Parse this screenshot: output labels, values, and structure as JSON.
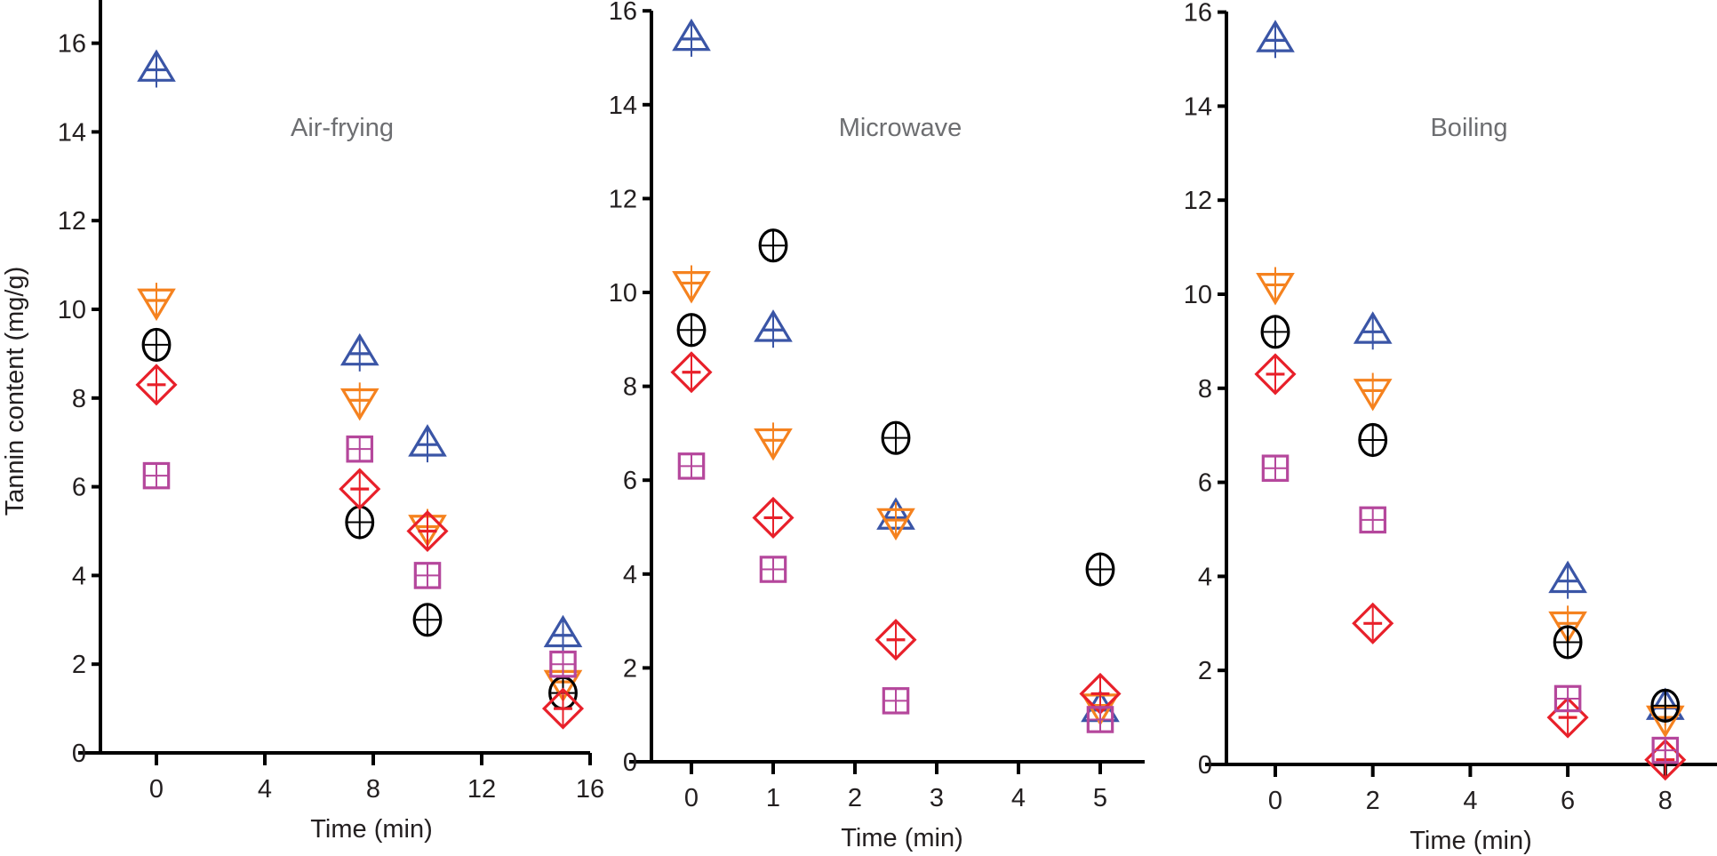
{
  "chart_data": [
    {
      "type": "scatter",
      "title": "Air-frying",
      "xlabel": "Time (min)",
      "ylabel": "Tannin content (mg/g)",
      "xlim": [
        -2,
        16
      ],
      "ylim": [
        0,
        17
      ],
      "xticks": [
        0,
        4,
        8,
        12,
        16
      ],
      "yticks": [
        0,
        2,
        4,
        6,
        8,
        10,
        12,
        14,
        16
      ],
      "grid": false,
      "x": [
        0,
        7.5,
        10,
        15
      ],
      "series": [
        {
          "name": "series-1",
          "marker": "triangle-up",
          "color": "#3a55a6",
          "values": [
            15.4,
            9.0,
            6.95,
            2.65
          ]
        },
        {
          "name": "series-2",
          "marker": "triangle-down",
          "color": "#f5821f",
          "values": [
            10.2,
            7.95,
            5.1,
            1.6
          ]
        },
        {
          "name": "series-3",
          "marker": "circle",
          "color": "#000000",
          "values": [
            9.2,
            5.2,
            3.0,
            1.35
          ]
        },
        {
          "name": "series-4",
          "marker": "diamond",
          "color": "#e8202a",
          "values": [
            8.3,
            5.95,
            5.0,
            1.0
          ]
        },
        {
          "name": "series-5",
          "marker": "square",
          "color": "#b5479c",
          "values": [
            6.25,
            6.85,
            4.0,
            2.0
          ]
        }
      ]
    },
    {
      "type": "scatter",
      "title": "Microwave",
      "xlabel": "Time (min)",
      "ylabel": "",
      "xlim": [
        -0.5,
        5.5
      ],
      "ylim": [
        0,
        16
      ],
      "xticks": [
        0,
        1,
        2,
        3,
        4,
        5
      ],
      "yticks": [
        0,
        2,
        4,
        6,
        8,
        10,
        12,
        14,
        16
      ],
      "grid": false,
      "x": [
        0,
        1,
        2.5,
        5
      ],
      "series": [
        {
          "name": "series-1",
          "marker": "triangle-up",
          "color": "#3a55a6",
          "values": [
            15.4,
            9.2,
            5.2,
            1.1
          ]
        },
        {
          "name": "series-2",
          "marker": "triangle-down",
          "color": "#f5821f",
          "values": [
            10.2,
            6.85,
            5.15,
            1.2
          ]
        },
        {
          "name": "series-3",
          "marker": "circle",
          "color": "#000000",
          "values": [
            9.2,
            11.0,
            6.9,
            4.1
          ]
        },
        {
          "name": "series-4",
          "marker": "diamond",
          "color": "#e8202a",
          "values": [
            8.3,
            5.2,
            2.6,
            1.45
          ]
        },
        {
          "name": "series-5",
          "marker": "square",
          "color": "#b5479c",
          "values": [
            6.3,
            4.1,
            1.3,
            0.9
          ]
        }
      ]
    },
    {
      "type": "scatter",
      "title": "Boiling",
      "xlabel": "Time (min)",
      "ylabel": "",
      "xlim": [
        -1,
        9
      ],
      "ylim": [
        0,
        16
      ],
      "xticks": [
        0,
        2,
        4,
        6,
        8
      ],
      "yticks": [
        0,
        2,
        4,
        6,
        8,
        10,
        12,
        14,
        16
      ],
      "grid": false,
      "x": [
        0,
        2,
        6,
        8
      ],
      "series": [
        {
          "name": "series-1",
          "marker": "triangle-up",
          "color": "#3a55a6",
          "values": [
            15.4,
            9.2,
            3.9,
            1.2
          ]
        },
        {
          "name": "series-2",
          "marker": "triangle-down",
          "color": "#f5821f",
          "values": [
            10.2,
            7.95,
            3.0,
            1.0
          ]
        },
        {
          "name": "series-3",
          "marker": "circle",
          "color": "#000000",
          "values": [
            9.2,
            6.9,
            2.6,
            1.25
          ]
        },
        {
          "name": "series-4",
          "marker": "diamond",
          "color": "#e8202a",
          "values": [
            8.3,
            3.0,
            1.0,
            0.1
          ]
        },
        {
          "name": "series-5",
          "marker": "square",
          "color": "#b5479c",
          "values": [
            6.3,
            5.2,
            1.4,
            0.3
          ]
        }
      ]
    }
  ]
}
